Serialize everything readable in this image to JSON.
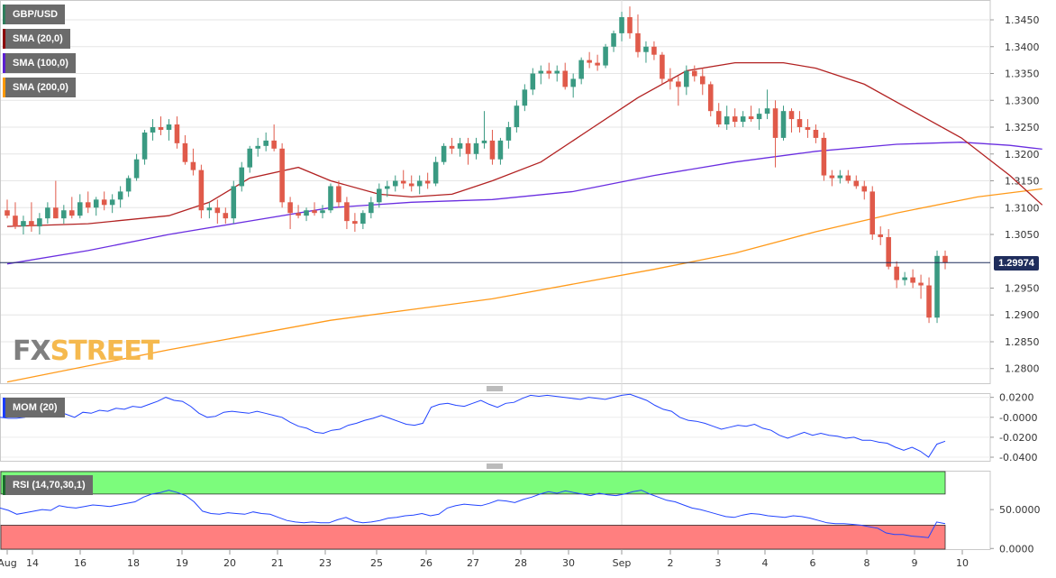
{
  "legends": {
    "symbol": {
      "label": "GBP/USD",
      "color": "#2e7d5b"
    },
    "sma20": {
      "label": "SMA (20,0)",
      "color": "#8b0000"
    },
    "sma100": {
      "label": "SMA (100,0)",
      "color": "#5b1fd0"
    },
    "sma200": {
      "label": "SMA (200,0)",
      "color": "#ff9900"
    },
    "mom": {
      "label": "MOM (20)",
      "color": "#1a3cff"
    },
    "rsi": {
      "label": "RSI (14,70,30,1)",
      "color": "#1a6b2c"
    }
  },
  "last_price": "1.29974",
  "watermark": {
    "part1": "FX",
    "part2": "STREET"
  },
  "colors": {
    "up": "#3a9a82",
    "down": "#e05a4a",
    "sma20": "#b22222",
    "sma100": "#6a2ee0",
    "sma200": "#ff9a1a",
    "mom_line": "#2244ff",
    "rsi_line": "#2244ff",
    "rsi_overbought": "#7cfc7c",
    "rsi_oversold": "#ff7f7f",
    "last_price_line": "#1f2d5c"
  },
  "chart_data": {
    "type": "candlestick",
    "price_axis": {
      "ticks": [
        "1.3450",
        "1.3400",
        "1.3350",
        "1.3300",
        "1.3250",
        "1.3200",
        "1.3150",
        "1.3100",
        "1.3050",
        "1.2950",
        "1.2900",
        "1.2850",
        "1.2800"
      ],
      "range": [
        1.2771,
        1.3487
      ]
    },
    "time_axis": {
      "labels": [
        "Aug",
        "14",
        "16",
        "18",
        "19",
        "20",
        "21",
        "23",
        "25",
        "26",
        "27",
        "28",
        "30",
        "Sep",
        "2",
        "3",
        "4",
        "6",
        "8",
        "9",
        "10"
      ]
    },
    "candles": [
      [
        1.3095,
        1.3115,
        1.308,
        1.3085
      ],
      [
        1.3085,
        1.311,
        1.306,
        1.3065
      ],
      [
        1.3065,
        1.3085,
        1.305,
        1.3075
      ],
      [
        1.3075,
        1.311,
        1.3055,
        1.3065
      ],
      [
        1.3065,
        1.309,
        1.305,
        1.308
      ],
      [
        1.308,
        1.311,
        1.307,
        1.31
      ],
      [
        1.31,
        1.315,
        1.308,
        1.308
      ],
      [
        1.308,
        1.3105,
        1.307,
        1.3095
      ],
      [
        1.3095,
        1.312,
        1.308,
        1.3085
      ],
      [
        1.3085,
        1.3125,
        1.308,
        1.311
      ],
      [
        1.311,
        1.313,
        1.309,
        1.31
      ],
      [
        1.31,
        1.312,
        1.3085,
        1.3115
      ],
      [
        1.3115,
        1.313,
        1.3095,
        1.3105
      ],
      [
        1.3105,
        1.3125,
        1.309,
        1.3115
      ],
      [
        1.3115,
        1.314,
        1.31,
        1.313
      ],
      [
        1.313,
        1.316,
        1.312,
        1.3155
      ],
      [
        1.3155,
        1.32,
        1.315,
        1.319
      ],
      [
        1.319,
        1.3245,
        1.318,
        1.324
      ],
      [
        1.324,
        1.3265,
        1.3225,
        1.325
      ],
      [
        1.325,
        1.327,
        1.3235,
        1.3245
      ],
      [
        1.3245,
        1.3265,
        1.3225,
        1.3255
      ],
      [
        1.3255,
        1.327,
        1.321,
        1.322
      ],
      [
        1.322,
        1.3235,
        1.318,
        1.3185
      ],
      [
        1.3185,
        1.321,
        1.316,
        1.317
      ],
      [
        1.317,
        1.318,
        1.308,
        1.3095
      ],
      [
        1.3095,
        1.311,
        1.308,
        1.31
      ],
      [
        1.31,
        1.3115,
        1.307,
        1.309
      ],
      [
        1.309,
        1.31,
        1.307,
        1.308
      ],
      [
        1.308,
        1.315,
        1.307,
        1.314
      ],
      [
        1.314,
        1.3185,
        1.313,
        1.3175
      ],
      [
        1.3175,
        1.3215,
        1.3165,
        1.321
      ],
      [
        1.321,
        1.323,
        1.3195,
        1.3215
      ],
      [
        1.3215,
        1.324,
        1.3205,
        1.3225
      ],
      [
        1.3225,
        1.3255,
        1.3205,
        1.321
      ],
      [
        1.321,
        1.322,
        1.31,
        1.311
      ],
      [
        1.311,
        1.312,
        1.306,
        1.309
      ],
      [
        1.309,
        1.3105,
        1.308,
        1.3085
      ],
      [
        1.3085,
        1.31,
        1.3075,
        1.3095
      ],
      [
        1.3095,
        1.311,
        1.3085,
        1.309
      ],
      [
        1.309,
        1.3105,
        1.308,
        1.3095
      ],
      [
        1.3095,
        1.3145,
        1.309,
        1.314
      ],
      [
        1.314,
        1.315,
        1.31,
        1.311
      ],
      [
        1.311,
        1.312,
        1.306,
        1.3075
      ],
      [
        1.3075,
        1.309,
        1.3055,
        1.307
      ],
      [
        1.307,
        1.3095,
        1.306,
        1.309
      ],
      [
        1.309,
        1.312,
        1.308,
        1.311
      ],
      [
        1.311,
        1.3145,
        1.31,
        1.3135
      ],
      [
        1.3135,
        1.315,
        1.312,
        1.314
      ],
      [
        1.314,
        1.316,
        1.313,
        1.315
      ],
      [
        1.315,
        1.317,
        1.3135,
        1.3145
      ],
      [
        1.3145,
        1.316,
        1.313,
        1.314
      ],
      [
        1.314,
        1.316,
        1.3125,
        1.315
      ],
      [
        1.315,
        1.3165,
        1.3135,
        1.3145
      ],
      [
        1.3145,
        1.3195,
        1.314,
        1.3185
      ],
      [
        1.3185,
        1.322,
        1.318,
        1.3215
      ],
      [
        1.3215,
        1.323,
        1.32,
        1.321
      ],
      [
        1.321,
        1.323,
        1.3195,
        1.322
      ],
      [
        1.322,
        1.323,
        1.318,
        1.32
      ],
      [
        1.32,
        1.323,
        1.319,
        1.322
      ],
      [
        1.322,
        1.328,
        1.321,
        1.3225
      ],
      [
        1.3225,
        1.3245,
        1.318,
        1.319
      ],
      [
        1.319,
        1.323,
        1.318,
        1.3225
      ],
      [
        1.3225,
        1.326,
        1.321,
        1.325
      ],
      [
        1.325,
        1.33,
        1.324,
        1.329
      ],
      [
        1.329,
        1.333,
        1.328,
        1.332
      ],
      [
        1.332,
        1.336,
        1.331,
        1.335
      ],
      [
        1.335,
        1.3365,
        1.333,
        1.3355
      ],
      [
        1.3355,
        1.337,
        1.334,
        1.335
      ],
      [
        1.335,
        1.3365,
        1.3335,
        1.3355
      ],
      [
        1.3355,
        1.337,
        1.332,
        1.3325
      ],
      [
        1.3325,
        1.335,
        1.3305,
        1.334
      ],
      [
        1.334,
        1.338,
        1.333,
        1.3375
      ],
      [
        1.3375,
        1.339,
        1.336,
        1.337
      ],
      [
        1.337,
        1.3385,
        1.3355,
        1.3365
      ],
      [
        1.3365,
        1.3405,
        1.336,
        1.34
      ],
      [
        1.34,
        1.343,
        1.339,
        1.3425
      ],
      [
        1.3425,
        1.3465,
        1.341,
        1.3455
      ],
      [
        1.3455,
        1.3475,
        1.3415,
        1.3425
      ],
      [
        1.3425,
        1.346,
        1.338,
        1.339
      ],
      [
        1.339,
        1.341,
        1.337,
        1.34
      ],
      [
        1.34,
        1.341,
        1.3375,
        1.3385
      ],
      [
        1.3385,
        1.339,
        1.333,
        1.334
      ],
      [
        1.334,
        1.336,
        1.332,
        1.3335
      ],
      [
        1.3335,
        1.3345,
        1.329,
        1.3325
      ],
      [
        1.3325,
        1.3365,
        1.331,
        1.3355
      ],
      [
        1.3355,
        1.3365,
        1.3335,
        1.3345
      ],
      [
        1.3345,
        1.336,
        1.331,
        1.333
      ],
      [
        1.333,
        1.3335,
        1.327,
        1.328
      ],
      [
        1.328,
        1.3295,
        1.325,
        1.3255
      ],
      [
        1.3255,
        1.329,
        1.3245,
        1.327
      ],
      [
        1.327,
        1.3285,
        1.325,
        1.326
      ],
      [
        1.326,
        1.328,
        1.325,
        1.327
      ],
      [
        1.327,
        1.329,
        1.326,
        1.3265
      ],
      [
        1.3265,
        1.3285,
        1.3245,
        1.3275
      ],
      [
        1.3275,
        1.332,
        1.3265,
        1.3285
      ],
      [
        1.3285,
        1.33,
        1.3175,
        1.323
      ],
      [
        1.323,
        1.329,
        1.3225,
        1.328
      ],
      [
        1.328,
        1.3285,
        1.324,
        1.3265
      ],
      [
        1.3265,
        1.328,
        1.324,
        1.325
      ],
      [
        1.325,
        1.3265,
        1.323,
        1.3245
      ],
      [
        1.3245,
        1.3255,
        1.322,
        1.323
      ],
      [
        1.323,
        1.324,
        1.315,
        1.316
      ],
      [
        1.316,
        1.317,
        1.314,
        1.3155
      ],
      [
        1.3155,
        1.317,
        1.3145,
        1.316
      ],
      [
        1.316,
        1.317,
        1.3145,
        1.315
      ],
      [
        1.315,
        1.316,
        1.3135,
        1.314
      ],
      [
        1.314,
        1.315,
        1.3115,
        1.313
      ],
      [
        1.313,
        1.314,
        1.304,
        1.305
      ],
      [
        1.305,
        1.3065,
        1.303,
        1.3045
      ],
      [
        1.3045,
        1.306,
        1.2985,
        1.299
      ],
      [
        1.299,
        1.3,
        1.295,
        1.2965
      ],
      [
        1.2965,
        1.298,
        1.2955,
        1.297
      ],
      [
        1.297,
        1.2985,
        1.295,
        1.296
      ],
      [
        1.296,
        1.2975,
        1.293,
        1.2955
      ],
      [
        1.2955,
        1.297,
        1.2885,
        1.2895
      ],
      [
        1.2895,
        1.302,
        1.2885,
        1.301
      ],
      [
        1.301,
        1.302,
        1.2985,
        1.2997
      ]
    ],
    "sma20": [
      [
        0,
        1.3065
      ],
      [
        10,
        1.307
      ],
      [
        20,
        1.3085
      ],
      [
        25,
        1.311
      ],
      [
        30,
        1.3155
      ],
      [
        36,
        1.3175
      ],
      [
        40,
        1.315
      ],
      [
        46,
        1.3125
      ],
      [
        50,
        1.312
      ],
      [
        55,
        1.3125
      ],
      [
        60,
        1.315
      ],
      [
        66,
        1.3185
      ],
      [
        72,
        1.3245
      ],
      [
        78,
        1.3305
      ],
      [
        84,
        1.3355
      ],
      [
        90,
        1.337
      ],
      [
        96,
        1.337
      ],
      [
        100,
        1.336
      ],
      [
        106,
        1.333
      ],
      [
        112,
        1.328
      ],
      [
        118,
        1.323
      ],
      [
        124,
        1.316
      ],
      [
        128,
        1.3105
      ]
    ],
    "sma100": [
      [
        0,
        1.2995
      ],
      [
        10,
        1.302
      ],
      [
        20,
        1.305
      ],
      [
        30,
        1.3075
      ],
      [
        40,
        1.31
      ],
      [
        50,
        1.311
      ],
      [
        60,
        1.3115
      ],
      [
        70,
        1.313
      ],
      [
        80,
        1.316
      ],
      [
        90,
        1.3185
      ],
      [
        100,
        1.3205
      ],
      [
        110,
        1.3218
      ],
      [
        118,
        1.3222
      ],
      [
        124,
        1.3216
      ],
      [
        128,
        1.3209
      ]
    ],
    "sma200": [
      [
        0,
        1.2775
      ],
      [
        20,
        1.2835
      ],
      [
        40,
        1.289
      ],
      [
        60,
        1.293
      ],
      [
        80,
        1.2985
      ],
      [
        90,
        1.3015
      ],
      [
        100,
        1.3055
      ],
      [
        110,
        1.309
      ],
      [
        120,
        1.312
      ],
      [
        128,
        1.3135
      ]
    ],
    "mom": {
      "ticks": [
        "0.0200",
        "-0.0000",
        "-0.0200",
        "-0.0400"
      ],
      "range": [
        -0.0445,
        0.0242
      ],
      "values": [
        0.0,
        -0.001,
        -0.001,
        0.0,
        0.003,
        0.005,
        0.004,
        0.006,
        0.003,
        0.0,
        0.005,
        0.004,
        0.007,
        0.006,
        0.009,
        0.008,
        0.011,
        0.01,
        0.013,
        0.016,
        0.02,
        0.017,
        0.016,
        0.011,
        0.004,
        0.0,
        0.001,
        0.005,
        0.006,
        0.005,
        0.004,
        0.006,
        0.004,
        0.002,
        0.0,
        -0.005,
        -0.009,
        -0.011,
        -0.015,
        -0.016,
        -0.013,
        -0.012,
        -0.008,
        -0.006,
        -0.003,
        -0.001,
        0.002,
        -0.001,
        -0.004,
        -0.007,
        -0.008,
        -0.006,
        0.01,
        0.013,
        0.014,
        0.012,
        0.011,
        0.014,
        0.017,
        0.013,
        0.01,
        0.014,
        0.015,
        0.019,
        0.022,
        0.021,
        0.022,
        0.021,
        0.02,
        0.019,
        0.018,
        0.02,
        0.019,
        0.018,
        0.02,
        0.022,
        0.023,
        0.02,
        0.017,
        0.012,
        0.008,
        0.006,
        0.0,
        -0.003,
        -0.004,
        -0.006,
        -0.009,
        -0.012,
        -0.01,
        -0.008,
        -0.009,
        -0.007,
        -0.011,
        -0.013,
        -0.018,
        -0.021,
        -0.018,
        -0.015,
        -0.018,
        -0.016,
        -0.018,
        -0.019,
        -0.021,
        -0.02,
        -0.023,
        -0.023,
        -0.025,
        -0.026,
        -0.03,
        -0.033,
        -0.03,
        -0.034,
        -0.04,
        -0.027,
        -0.024
      ]
    },
    "rsi": {
      "ticks": [
        "50.0000",
        "0.0000"
      ],
      "range": [
        -2,
        100
      ],
      "overbought": 70,
      "oversold": 30,
      "values": [
        52,
        49,
        44,
        46,
        48,
        50,
        49,
        55,
        53,
        52,
        54,
        56,
        55,
        54,
        56,
        58,
        60,
        66,
        70,
        72,
        75,
        72,
        68,
        60,
        48,
        45,
        44,
        46,
        45,
        44,
        47,
        45,
        44,
        40,
        36,
        34,
        33,
        34,
        33,
        33,
        37,
        40,
        35,
        33,
        34,
        36,
        39,
        40,
        42,
        43,
        45,
        42,
        44,
        52,
        55,
        57,
        56,
        55,
        58,
        62,
        61,
        59,
        63,
        66,
        70,
        73,
        71,
        74,
        72,
        70,
        68,
        71,
        69,
        68,
        70,
        73,
        75,
        70,
        66,
        62,
        60,
        56,
        52,
        50,
        47,
        44,
        41,
        40,
        43,
        45,
        44,
        42,
        41,
        40,
        42,
        41,
        39,
        36,
        33,
        32,
        32,
        31,
        30,
        28,
        26,
        20,
        18,
        18,
        16,
        15,
        14,
        34,
        32
      ]
    }
  }
}
